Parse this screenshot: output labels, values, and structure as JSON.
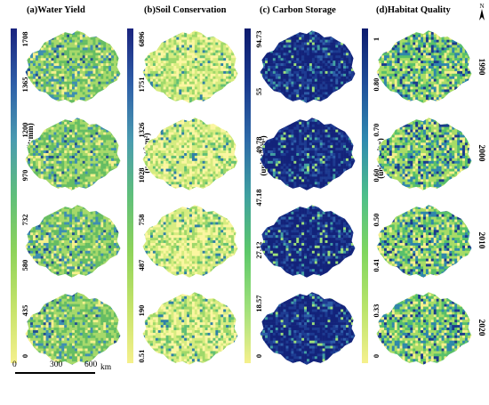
{
  "panels": [
    {
      "title": "(a)Water Yield",
      "unit": "(unit:mm)",
      "ticks": [
        "1708",
        "1365",
        "1200",
        "970",
        "732",
        "580",
        "435",
        "0"
      ],
      "gradient": [
        "#1a237e",
        "#2e5fa8",
        "#4a9bb0",
        "#5fbf7a",
        "#8ed35a",
        "#c5e36a",
        "#f5f08c"
      ]
    },
    {
      "title": "(b)Soil Conservation",
      "unit": "(unit:t/hm²)",
      "ticks": [
        "6896",
        "1751",
        "1326",
        "1028",
        "758",
        "487",
        "190",
        "0.51"
      ],
      "gradient": [
        "#1a237e",
        "#2e5fa8",
        "#4a9bb0",
        "#5fbf7a",
        "#8ed35a",
        "#c5e36a",
        "#f5f08c"
      ]
    },
    {
      "title": "(c) Carbon Storage",
      "unit": "(unit:t/hm²)",
      "ticks": [
        "94.73",
        "55",
        "49.78",
        "47.18",
        "27.12",
        "18.57",
        "0"
      ],
      "gradient": [
        "#0d1b6e",
        "#1a3a8e",
        "#2e6aa8",
        "#3fa0a0",
        "#5cc86a",
        "#9ee07a",
        "#f5f08c"
      ]
    },
    {
      "title": "(d)Habitat Quality",
      "unit": "(unit:index)",
      "ticks": [
        "1",
        "0.80",
        "0.70",
        "0.60",
        "0.50",
        "0.41",
        "0.33",
        "0"
      ],
      "gradient": [
        "#0d1b6e",
        "#1f4f9a",
        "#2f8ab0",
        "#4dbf8a",
        "#7fd65f",
        "#b8e46a",
        "#f5f08c"
      ]
    }
  ],
  "years": [
    "1990",
    "2000",
    "2010",
    "2020"
  ],
  "scale_bar": {
    "labels": [
      "0",
      "300",
      "600"
    ],
    "unit": "km"
  },
  "north_label": "N",
  "colors": {
    "wy": [
      "#f5f08c",
      "#a6d96a",
      "#66bd63",
      "#3e8fb0",
      "#22508f"
    ],
    "sc": [
      "#fbf6a0",
      "#d6ec80",
      "#9fd86a",
      "#62bf74",
      "#2f7fa6"
    ],
    "cs": [
      "#13237a",
      "#1d3b91",
      "#2d5da8",
      "#43a0a2",
      "#9ee07a"
    ],
    "hq": [
      "#f5f08c",
      "#a7dc66",
      "#58c06a",
      "#2f87aa",
      "#1a3b8c"
    ]
  }
}
